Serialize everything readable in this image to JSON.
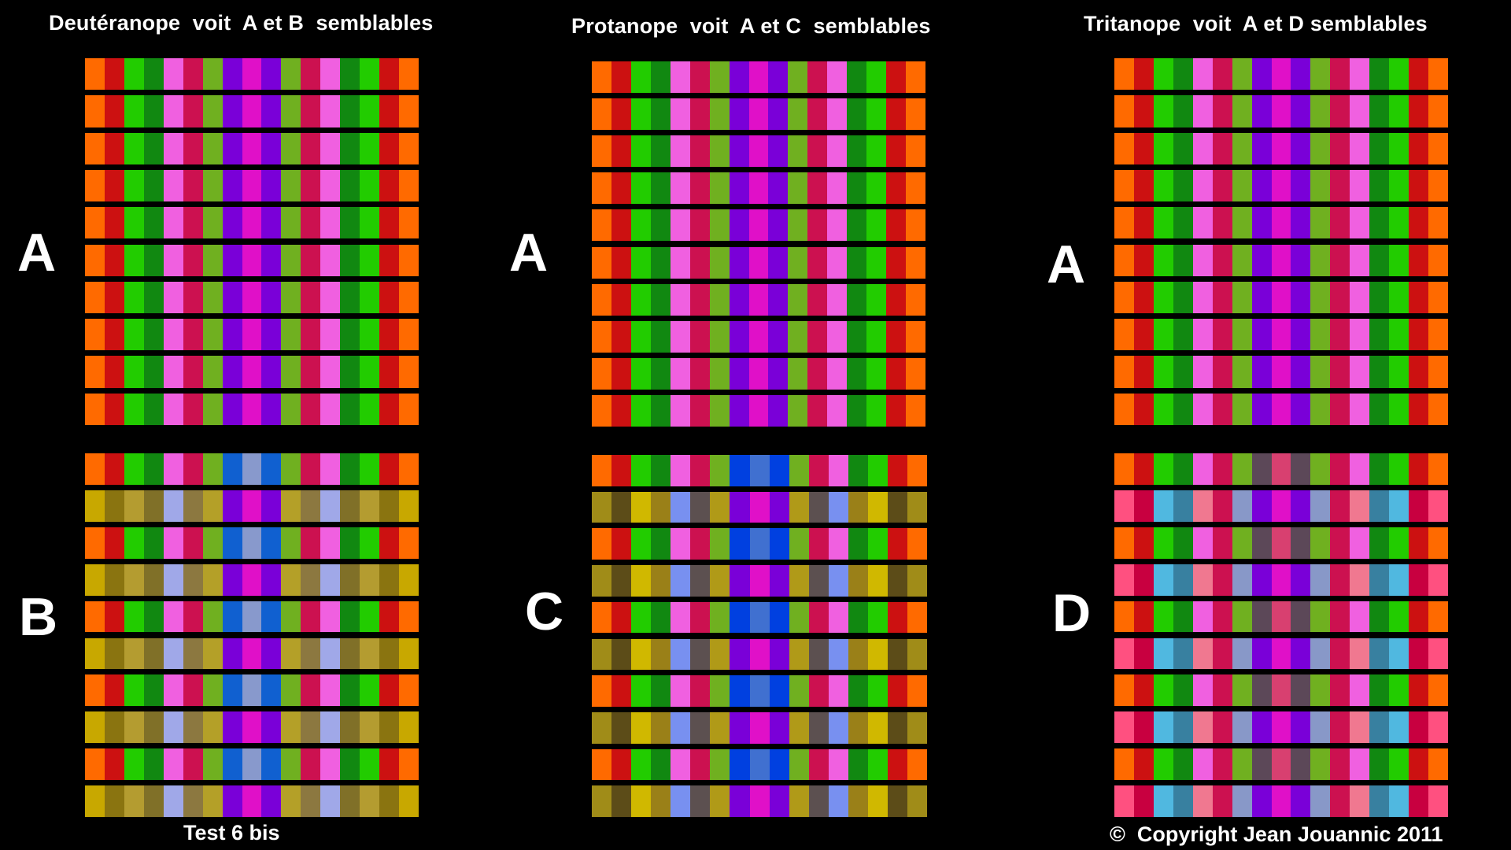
{
  "headings": {
    "deuteranope": "Deutéranope  voit  A et B  semblables",
    "protanope": "Protanope  voit  A et C  semblables",
    "tritanope": "Tritanope  voit  A et D semblables"
  },
  "letters": {
    "a1": "A",
    "a2": "A",
    "a3": "A",
    "b": "B",
    "c": "C",
    "d": "D"
  },
  "footer": {
    "test": "Test 6 bis",
    "copyright": "©  Copyright Jean Jouannic 2011"
  },
  "colors": {
    "background": "#000000"
  },
  "patterns": {
    "A": [
      "#ff6a00",
      "#cc1111",
      "#22cc00",
      "#118811",
      "#f060e0",
      "#cc1150",
      "#70b020",
      "#7a00d8",
      "#e010c8",
      "#7a00d8",
      "#70b020",
      "#cc1150",
      "#f060e0",
      "#118811",
      "#22cc00",
      "#cc1111",
      "#ff6a00"
    ],
    "B_even": [
      "#ff6a00",
      "#cc1111",
      "#22cc00",
      "#118811",
      "#f060e0",
      "#cc1150",
      "#70b020",
      "#1060d0",
      "#8899cc",
      "#1060d0",
      "#70b020",
      "#cc1150",
      "#f060e0",
      "#118811",
      "#22cc00",
      "#cc1111",
      "#ff6a00"
    ],
    "B_odd": [
      "#c8a800",
      "#8a7410",
      "#b49c30",
      "#807028",
      "#a0a8e8",
      "#8c7840",
      "#b4a028",
      "#7a00d8",
      "#e010c8",
      "#7a00d8",
      "#b4a028",
      "#8c7840",
      "#a0a8e8",
      "#807028",
      "#b49c30",
      "#8a7410",
      "#c8a800"
    ],
    "C_even": [
      "#ff6a00",
      "#cc1111",
      "#22cc00",
      "#118811",
      "#f060e0",
      "#cc1150",
      "#70b020",
      "#0040e0",
      "#4070d0",
      "#0040e0",
      "#70b020",
      "#cc1150",
      "#f060e0",
      "#118811",
      "#22cc00",
      "#cc1111",
      "#ff6a00"
    ],
    "C_odd": [
      "#a08c18",
      "#5c4c18",
      "#d0b800",
      "#9a8018",
      "#7890f0",
      "#5c5050",
      "#b09a18",
      "#7a00d8",
      "#e010c8",
      "#7a00d8",
      "#b09a18",
      "#5c5050",
      "#7890f0",
      "#9a8018",
      "#d0b800",
      "#5c4c18",
      "#a08c18"
    ],
    "D_even": [
      "#ff6a00",
      "#cc1111",
      "#22cc00",
      "#118811",
      "#f060e0",
      "#cc1150",
      "#70b020",
      "#5c4858",
      "#d84070",
      "#5c4858",
      "#70b020",
      "#cc1150",
      "#f060e0",
      "#118811",
      "#22cc00",
      "#cc1111",
      "#ff6a00"
    ],
    "D_odd": [
      "#ff5080",
      "#c80040",
      "#50b8e0",
      "#3880a0",
      "#f07890",
      "#cc1150",
      "#8898c8",
      "#7a00d8",
      "#e010c8",
      "#7a00d8",
      "#8898c8",
      "#cc1150",
      "#f07890",
      "#3880a0",
      "#50b8e0",
      "#c80040",
      "#ff5080"
    ]
  }
}
